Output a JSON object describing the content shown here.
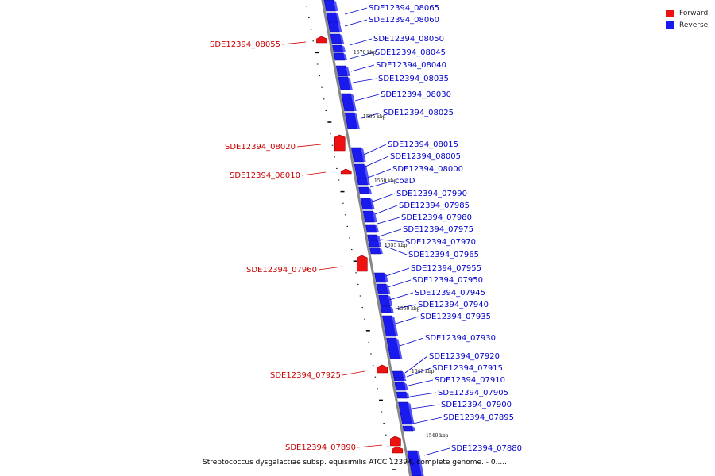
{
  "legend": {
    "forward_label": "Forward",
    "reverse_label": "Reverse",
    "forward_color": "#ee1111",
    "reverse_color": "#1a1aee"
  },
  "caption": "Streptococcus dysgalactiae subsp. equisimilis ATCC 12394, complete genome. - 0.....",
  "colors": {
    "backbone": "#888888",
    "forward_label": "#cc0000",
    "reverse_label": "#0000cc"
  },
  "scale_labels": [
    "1570 kbp",
    "1565 kbp",
    "1560 kbp",
    "1555 kbp",
    "1550 kbp",
    "1545 kbp",
    "1540 kbp"
  ],
  "reverse_genes": [
    "SDE12394_08065",
    "SDE12394_08060",
    "SDE12394_08050",
    "SDE12394_08045",
    "SDE12394_08040",
    "SDE12394_08035",
    "SDE12394_08030",
    "SDE12394_08025",
    "SDE12394_08015",
    "SDE12394_08005",
    "SDE12394_08000",
    "coaD",
    "SDE12394_07990",
    "SDE12394_07985",
    "SDE12394_07980",
    "SDE12394_07975",
    "SDE12394_07970",
    "SDE12394_07965",
    "SDE12394_07955",
    "SDE12394_07950",
    "SDE12394_07945",
    "SDE12394_07940",
    "SDE12394_07935",
    "SDE12394_07930",
    "SDE12394_07920",
    "SDE12394_07915",
    "SDE12394_07910",
    "SDE12394_07905",
    "SDE12394_07900",
    "SDE12394_07895",
    "SDE12394_07880"
  ],
  "forward_genes": [
    "SDE12394_08055",
    "SDE12394_08020",
    "SDE12394_08010",
    "SDE12394_07960",
    "SDE12394_07925",
    "SDE12394_07890"
  ]
}
